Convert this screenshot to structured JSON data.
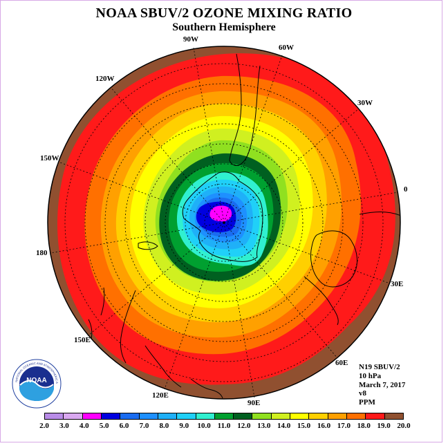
{
  "title": "NOAA SBUV/2 OZONE MIXING RATIO",
  "subtitle": "Southern Hemisphere",
  "longitude_labels": [
    "90W",
    "60W",
    "30W",
    "0",
    "30E",
    "60E",
    "90E",
    "120E",
    "150E",
    "180",
    "150W",
    "120W"
  ],
  "info": {
    "satellite": "N19 SBUV/2",
    "level": "10 hPa",
    "date": "March 7, 2017",
    "version": "v8",
    "units": "PPM"
  },
  "logo": {
    "name": "NOAA",
    "ring_text": "NATIONAL OCEANIC AND ATMOSPHERIC ADMINISTRATION · U.S. DEPARTMENT OF COMMERCE"
  },
  "colorbar": {
    "ticks": [
      "2.0",
      "3.0",
      "4.0",
      "5.0",
      "6.0",
      "7.0",
      "8.0",
      "9.0",
      "10.0",
      "11.0",
      "12.0",
      "13.0",
      "14.0",
      "15.0",
      "16.0",
      "17.0",
      "18.0",
      "19.0",
      "20.0"
    ],
    "colors": [
      "#b98ce8",
      "#d9a8f0",
      "#ff00ff",
      "#0000e0",
      "#1a6cf0",
      "#1e90ff",
      "#1fb0f8",
      "#20d0f8",
      "#30f0d0",
      "#00a030",
      "#006020",
      "#90e020",
      "#d0f020",
      "#ffff00",
      "#ffd000",
      "#ffa000",
      "#ff7000",
      "#ff1a1a",
      "#905030"
    ]
  }
}
